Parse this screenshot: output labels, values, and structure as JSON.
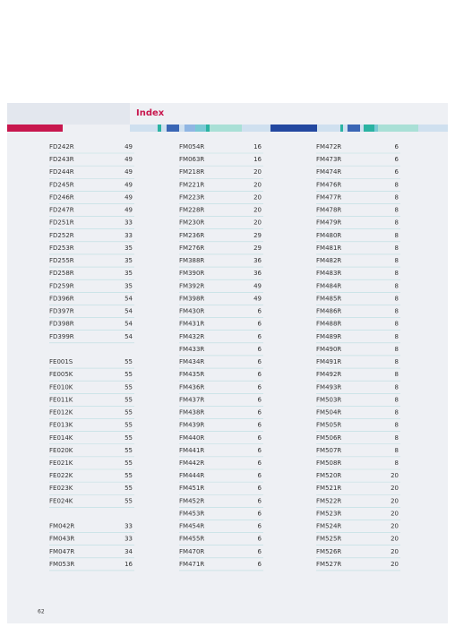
{
  "header": {
    "title": "Index"
  },
  "columns": [
    {
      "groups": [
        [
          [
            "FD242R",
            49
          ],
          [
            "FD243R",
            49
          ],
          [
            "FD244R",
            49
          ],
          [
            "FD245R",
            49
          ],
          [
            "FD246R",
            49
          ],
          [
            "FD247R",
            49
          ],
          [
            "FD251R",
            33
          ],
          [
            "FD252R",
            33
          ],
          [
            "FD253R",
            35
          ],
          [
            "FD255R",
            35
          ],
          [
            "FD258R",
            35
          ],
          [
            "FD259R",
            35
          ],
          [
            "FD396R",
            54
          ],
          [
            "FD397R",
            54
          ],
          [
            "FD398R",
            54
          ],
          [
            "FD399R",
            54
          ]
        ],
        [
          [
            "FE001S",
            55
          ],
          [
            "FE005K",
            55
          ],
          [
            "FE010K",
            55
          ],
          [
            "FE011K",
            55
          ],
          [
            "FE012K",
            55
          ],
          [
            "FE013K",
            55
          ],
          [
            "FE014K",
            55
          ],
          [
            "FE020K",
            55
          ],
          [
            "FE021K",
            55
          ],
          [
            "FE022K",
            55
          ],
          [
            "FE023K",
            55
          ],
          [
            "FE024K",
            55
          ]
        ],
        [
          [
            "FM042R",
            33
          ],
          [
            "FM043R",
            33
          ],
          [
            "FM047R",
            34
          ],
          [
            "FM053R",
            16
          ]
        ]
      ]
    },
    {
      "groups": [
        [
          [
            "FM054R",
            16
          ],
          [
            "FM063R",
            16
          ],
          [
            "FM218R",
            20
          ],
          [
            "FM221R",
            20
          ],
          [
            "FM223R",
            20
          ],
          [
            "FM228R",
            20
          ],
          [
            "FM230R",
            20
          ],
          [
            "FM236R",
            29
          ],
          [
            "FM276R",
            29
          ],
          [
            "FM388R",
            36
          ],
          [
            "FM390R",
            36
          ],
          [
            "FM392R",
            49
          ],
          [
            "FM398R",
            49
          ],
          [
            "FM430R",
            6
          ],
          [
            "FM431R",
            6
          ],
          [
            "FM432R",
            6
          ],
          [
            "FM433R",
            6
          ],
          [
            "FM434R",
            6
          ],
          [
            "FM435R",
            6
          ],
          [
            "FM436R",
            6
          ],
          [
            "FM437R",
            6
          ],
          [
            "FM438R",
            6
          ],
          [
            "FM439R",
            6
          ],
          [
            "FM440R",
            6
          ],
          [
            "FM441R",
            6
          ],
          [
            "FM442R",
            6
          ],
          [
            "FM444R",
            6
          ],
          [
            "FM451R",
            6
          ],
          [
            "FM452R",
            6
          ],
          [
            "FM453R",
            6
          ],
          [
            "FM454R",
            6
          ],
          [
            "FM455R",
            6
          ],
          [
            "FM470R",
            6
          ],
          [
            "FM471R",
            6
          ]
        ]
      ]
    },
    {
      "groups": [
        [
          [
            "FM472R",
            6
          ],
          [
            "FM473R",
            6
          ],
          [
            "FM474R",
            6
          ],
          [
            "FM476R",
            8
          ],
          [
            "FM477R",
            8
          ],
          [
            "FM478R",
            8
          ],
          [
            "FM479R",
            8
          ],
          [
            "FM480R",
            8
          ],
          [
            "FM481R",
            8
          ],
          [
            "FM482R",
            8
          ],
          [
            "FM483R",
            8
          ],
          [
            "FM484R",
            8
          ],
          [
            "FM485R",
            8
          ],
          [
            "FM486R",
            8
          ],
          [
            "FM488R",
            8
          ],
          [
            "FM489R",
            8
          ],
          [
            "FM490R",
            8
          ],
          [
            "FM491R",
            8
          ],
          [
            "FM492R",
            8
          ],
          [
            "FM493R",
            8
          ],
          [
            "FM503R",
            8
          ],
          [
            "FM504R",
            8
          ],
          [
            "FM505R",
            8
          ],
          [
            "FM506R",
            8
          ],
          [
            "FM507R",
            8
          ],
          [
            "FM508R",
            8
          ],
          [
            "FM520R",
            20
          ],
          [
            "FM521R",
            20
          ],
          [
            "FM522R",
            20
          ],
          [
            "FM523R",
            20
          ],
          [
            "FM524R",
            20
          ],
          [
            "FM525R",
            20
          ],
          [
            "FM526R",
            20
          ],
          [
            "FM527R",
            20
          ]
        ]
      ]
    }
  ],
  "footer": {
    "page_number": 62
  }
}
